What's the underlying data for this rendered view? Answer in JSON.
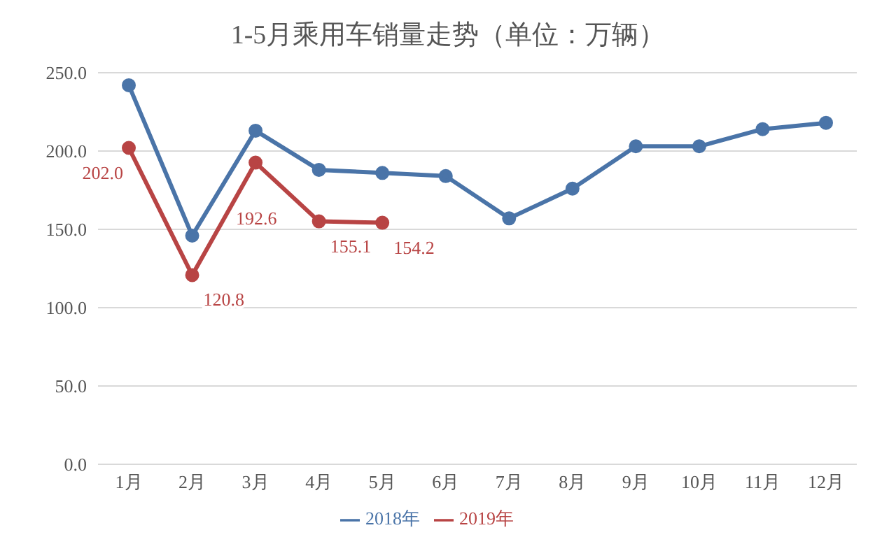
{
  "chart_data": {
    "type": "line",
    "title": "1-5月乘用车销量走势（单位：万辆）",
    "categories": [
      "1月",
      "2月",
      "3月",
      "4月",
      "5月",
      "6月",
      "7月",
      "8月",
      "9月",
      "10月",
      "11月",
      "12月"
    ],
    "series": [
      {
        "name": "2018年",
        "color": "#4a74a8",
        "values": [
          242,
          146,
          213,
          188,
          186,
          184,
          157,
          176,
          203,
          203,
          214,
          218
        ]
      },
      {
        "name": "2019年",
        "color": "#b84444",
        "values": [
          202.0,
          120.8,
          192.6,
          155.1,
          154.2,
          null,
          null,
          null,
          null,
          null,
          null,
          null
        ],
        "value_labels": [
          "202.0",
          "120.8",
          "192.6",
          "155.1",
          "154.2",
          null,
          null,
          null,
          null,
          null,
          null,
          null
        ]
      }
    ],
    "ylim": [
      0,
      250
    ],
    "yticks": [
      {
        "value": 0,
        "label": "0.0"
      },
      {
        "value": 50,
        "label": "50.0"
      },
      {
        "value": 100,
        "label": "100.0"
      },
      {
        "value": 150,
        "label": "150.0"
      },
      {
        "value": 200,
        "label": "200.0"
      },
      {
        "value": 250,
        "label": "250.0"
      }
    ],
    "grid": "y",
    "legend": "bottom",
    "marker": "circle",
    "line_style": "solid"
  }
}
